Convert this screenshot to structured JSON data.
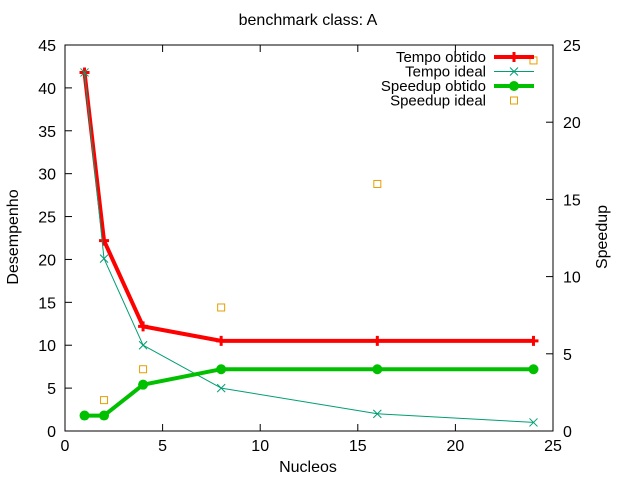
{
  "chart_data": {
    "type": "line",
    "title": "benchmark class: A",
    "xlabel": "Nucleos",
    "ylabel": "Desempenho",
    "y2label": "Speedup",
    "xlim": [
      0,
      25
    ],
    "ylim": [
      0,
      45
    ],
    "y2lim": [
      0,
      25
    ],
    "x_ticks": [
      "0",
      "5",
      "10",
      "15",
      "20",
      "25"
    ],
    "y_ticks": [
      "0",
      "5",
      "10",
      "15",
      "20",
      "25",
      "30",
      "35",
      "40",
      "45"
    ],
    "y2_ticks": [
      "0",
      "5",
      "10",
      "15",
      "20",
      "25"
    ],
    "grid": false,
    "legend_position": "top-right",
    "series": [
      {
        "name": "Tempo obtido",
        "axis": "y",
        "color": "#ff0000",
        "style": "line-plus",
        "points": [
          [
            1,
            41.8
          ],
          [
            2,
            22.2
          ],
          [
            4,
            12.2
          ],
          [
            8,
            10.5
          ],
          [
            16,
            10.5
          ],
          [
            24,
            10.5
          ]
        ]
      },
      {
        "name": "Tempo ideal",
        "axis": "y",
        "color": "#009e73",
        "style": "line-cross",
        "points": [
          [
            1,
            41.8
          ],
          [
            2,
            20.1
          ],
          [
            4,
            10.0
          ],
          [
            8,
            5.0
          ],
          [
            16,
            2.0
          ],
          [
            24,
            1.0
          ]
        ]
      },
      {
        "name": "Speedup obtido",
        "axis": "y2",
        "color": "#00c000",
        "style": "line-dot",
        "points": [
          [
            1,
            1.0
          ],
          [
            2,
            1.0
          ],
          [
            4,
            3.0
          ],
          [
            8,
            4.0
          ],
          [
            16,
            4.0
          ],
          [
            24,
            4.0
          ]
        ]
      },
      {
        "name": "Speedup ideal",
        "axis": "y2",
        "color": "#e69f00",
        "style": "square",
        "points": [
          [
            2,
            2.0
          ],
          [
            4,
            4.0
          ],
          [
            8,
            8.0
          ],
          [
            16,
            16.0
          ],
          [
            24,
            24.0
          ]
        ]
      }
    ]
  }
}
